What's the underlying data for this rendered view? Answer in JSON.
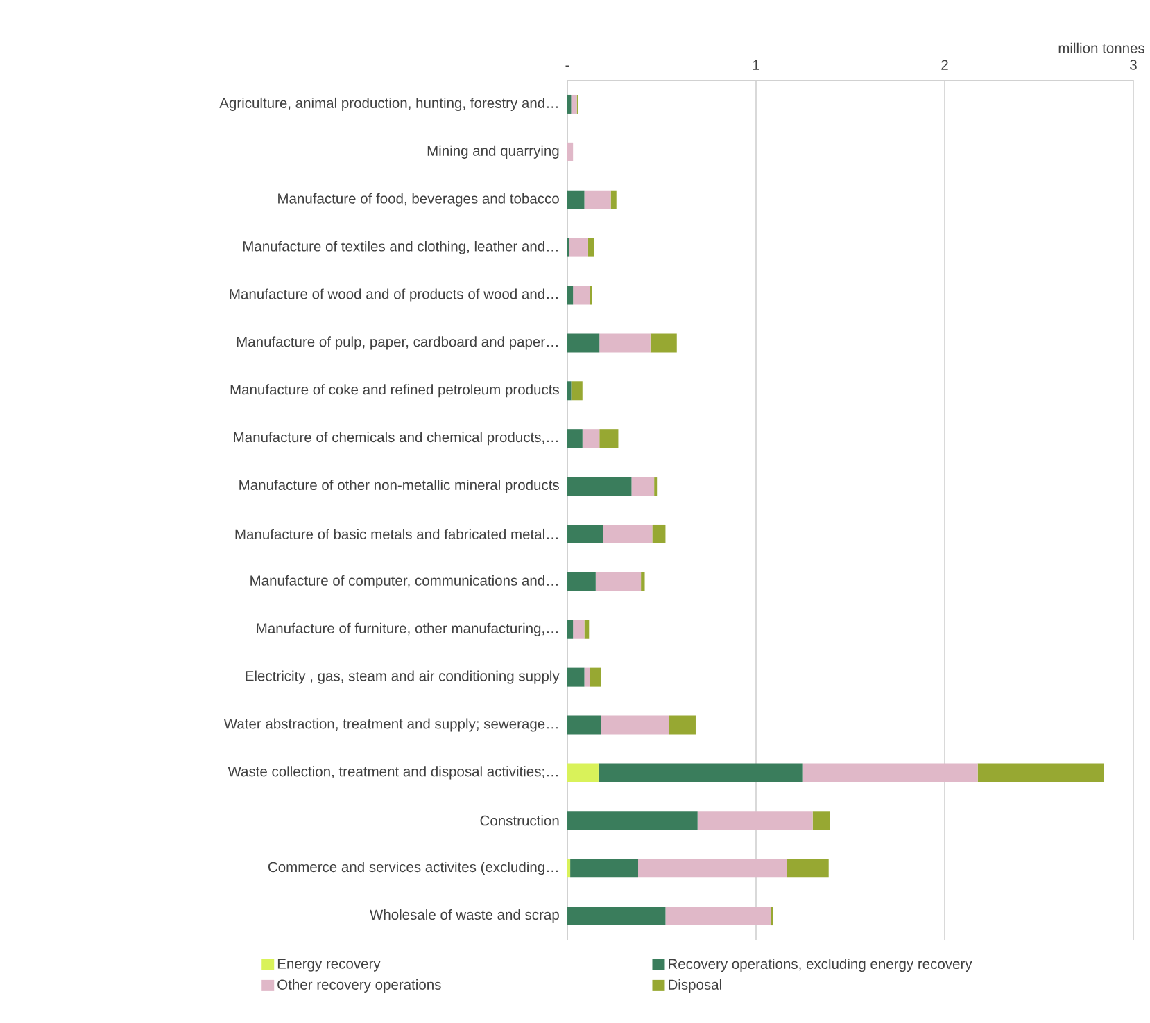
{
  "chart_data": {
    "type": "bar",
    "orientation": "horizontal",
    "stacked": true,
    "xlabel": "million tonnes",
    "categories": [
      "Agriculture, animal production, hunting, forestry and…",
      "Mining and quarrying",
      "Manufacture of food, beverages and tobacco",
      "Manufacture of textiles and clothing, leather and…",
      "Manufacture of wood and of products of wood and…",
      "Manufacture of pulp, paper, cardboard and paper…",
      "Manufacture of coke and refined petroleum products",
      "Manufacture of chemicals and chemical products,…",
      "Manufacture of other non-metallic mineral products",
      "Manufacture of basic metals and fabricated metal…",
      "Manufacture of computer, communications and…",
      "Manufacture of furniture, other manufacturing,…",
      "Electricity , gas, steam and air conditioning supply",
      "Water abstraction, treatment and supply; sewerage…",
      "Waste collection, treatment and disposal activities;…",
      "Construction",
      "Commerce and services activites (excluding…",
      "Wholesale of waste and scrap"
    ],
    "series": [
      {
        "name": "Energy recovery",
        "color": "#d9f25a",
        "values": [
          0,
          0,
          0,
          0,
          0,
          0,
          0,
          0,
          0,
          0,
          0,
          0,
          0,
          0,
          0.165,
          0,
          0.015,
          0
        ]
      },
      {
        "name": "Recovery operations, excluding energy recovery",
        "color": "#3a7d5c",
        "values": [
          0.02,
          0,
          0.09,
          0.01,
          0.03,
          0.17,
          0.02,
          0.08,
          0.34,
          0.19,
          0.15,
          0.03,
          0.09,
          0.18,
          1.08,
          0.69,
          0.36,
          0.52
        ]
      },
      {
        "name": "Other recovery operations",
        "color": "#e0b8c8",
        "values": [
          0.03,
          0.03,
          0.14,
          0.1,
          0.09,
          0.27,
          null,
          0.09,
          0.12,
          0.26,
          0.24,
          0.06,
          0.03,
          0.36,
          0.93,
          0.61,
          0.79,
          0.56
        ]
      },
      {
        "name": "Disposal",
        "color": "#97a832",
        "values": [
          0.005,
          0,
          0.03,
          0.03,
          0.01,
          0.14,
          0.06,
          0.1,
          0.015,
          0.07,
          0.02,
          0.025,
          0.06,
          0.14,
          0.67,
          0.09,
          0.22,
          0.01
        ]
      }
    ],
    "xlim": [
      0,
      3
    ],
    "xticks": [
      {
        "value": 0,
        "label": "-"
      },
      1,
      2,
      3
    ],
    "grid": "x",
    "legend": "bottom"
  }
}
